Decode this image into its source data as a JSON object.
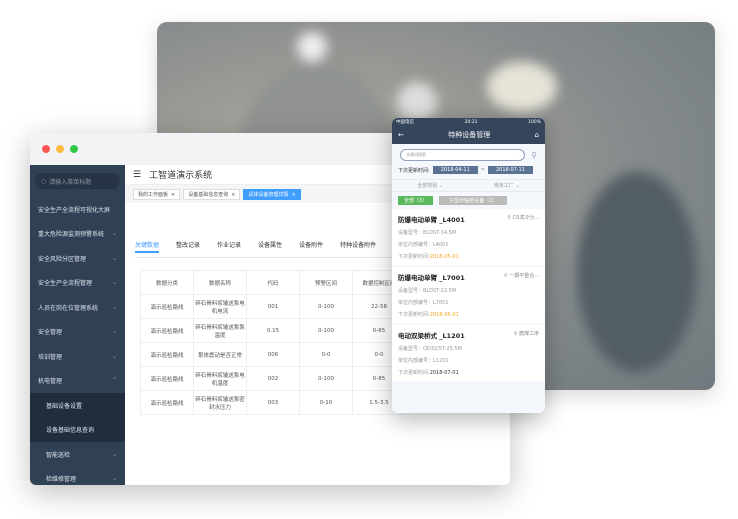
{
  "desktop": {
    "search_placeholder": "请输入菜单标题",
    "title": "工智道演示系统",
    "menu": [
      {
        "label": "安全生产全流程可视化大屏",
        "chevron": ""
      },
      {
        "label": "重大危险源监测预警系统",
        "chevron": "⌄"
      },
      {
        "label": "安全风险分区管理",
        "chevron": "⌄"
      },
      {
        "label": "安全生产全流程管理",
        "chevron": "⌄"
      },
      {
        "label": "人员在岗在位管理系统",
        "chevron": "⌄"
      },
      {
        "label": "安全管理",
        "chevron": "⌄"
      },
      {
        "label": "培训管理",
        "chevron": "⌄"
      },
      {
        "label": "机电管理",
        "chevron": "^"
      }
    ],
    "submenu": [
      "基础设备设置",
      "设备基础信息查询",
      "智能巡检",
      "检维修管理"
    ],
    "tags": [
      "我的工作面板",
      "设备基础信息查询",
      "具体设备管理详情"
    ],
    "content_tabs": [
      "关键数据",
      "整改记录",
      "作业记录",
      "设备属性",
      "设备附件",
      "特种设备附件"
    ],
    "table": {
      "headers": [
        "数据分类",
        "数据名称",
        "代码",
        "预警区间",
        "数据控制区间"
      ],
      "rows": [
        [
          "演示巡检路线",
          "碎石骨料浆输送泵电机电流",
          "001",
          "0-100",
          "22-58"
        ],
        [
          "演示巡检路线",
          "碎石骨料浆输送泵泵温度",
          "0.15",
          "0-100",
          "0-65"
        ],
        [
          "演示巡检路线",
          "泵体震动是否正常",
          "006",
          "0-0",
          "0-0"
        ],
        [
          "演示巡检路线",
          "碎石骨料浆输送泵电机温度",
          "002",
          "0-100",
          "0-85"
        ],
        [
          "演示巡检路线",
          "碎石骨料浆输送泵密封水压力",
          "003",
          "0-10",
          "1.5-3.5"
        ]
      ]
    }
  },
  "mobile": {
    "carrier": "中国电信",
    "time": "20:21",
    "battery": "100%",
    "title": "特种设备管理",
    "search_placeholder": "关键词搜索",
    "date_label": "下次更新时间:",
    "date_from": "2018-04-11",
    "date_sep": "~",
    "date_to": "2018-07-11",
    "filter_type": "全部类别",
    "filter_place": "南京工厂",
    "btn_all": "全部（3）",
    "btn_show": "只显示临检设备（2）",
    "items": [
      {
        "name": "防爆电动单臂 _L4001",
        "loc": "C0滨冷分...",
        "model": "设备型号：BLDST-14.5M",
        "code": "单位内部编号：L4001",
        "next_label": "下次更新时间:",
        "next": "2018-05-01",
        "warn": true
      },
      {
        "name": "防爆电动单臂 _L7001",
        "loc": "一期平整合...",
        "model": "设备型号：BLDST-22.5M",
        "code": "单位内部编号：L7001",
        "next_label": "下次更新时间:",
        "next": "2018-05-01",
        "warn": true
      },
      {
        "name": "电动双梁桥式 _L1201",
        "loc": "磨煤工序",
        "model": "设备型号：QD32/5T-25.5M",
        "code": "单位内部编号：L1201",
        "next_label": "下次更新时间:",
        "next": "2018-07-01",
        "warn": false
      }
    ]
  },
  "colors": {
    "sidebar": "#304156",
    "accent": "#409eff",
    "mobile_header": "#34455c",
    "warn": "#f5a623",
    "green": "#5cb85c"
  }
}
